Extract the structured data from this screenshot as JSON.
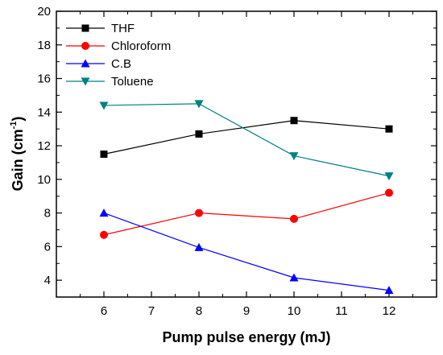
{
  "chart_data": {
    "type": "line",
    "title": "",
    "xlabel": "Pump pulse energy (mJ)",
    "ylabel_main": "Gain (cm",
    "ylabel_sup": "-1",
    "ylabel_close": ")",
    "xlim": [
      5,
      13
    ],
    "ylim": [
      3,
      20
    ],
    "x_major_ticks": [
      6,
      7,
      8,
      9,
      10,
      11,
      12
    ],
    "x_tick_labels": [
      "6",
      "7",
      "8",
      "9",
      "10",
      "11",
      "12"
    ],
    "y_major_ticks": [
      4,
      6,
      8,
      10,
      12,
      14,
      16,
      18,
      20
    ],
    "y_tick_labels": [
      "4",
      "6",
      "8",
      "10",
      "12",
      "14",
      "16",
      "18",
      "20"
    ],
    "grid": false,
    "legend_position": "top-left",
    "series": [
      {
        "name": "THF",
        "x": [
          6,
          8,
          10,
          12
        ],
        "y": [
          11.5,
          12.7,
          13.5,
          13.0
        ],
        "color": "#000000",
        "marker": "square"
      },
      {
        "name": "Chloroform",
        "x": [
          6,
          8,
          10,
          12
        ],
        "y": [
          6.7,
          8.0,
          7.65,
          9.2
        ],
        "color": "#ff0000",
        "marker": "circle"
      },
      {
        "name": "C.B",
        "x": [
          6,
          8,
          10,
          12
        ],
        "y": [
          8.0,
          5.95,
          4.15,
          3.4
        ],
        "color": "#0000ff",
        "marker": "triangle-up"
      },
      {
        "name": "Toluene",
        "x": [
          6,
          8,
          10,
          12
        ],
        "y": [
          14.4,
          14.5,
          11.4,
          10.2
        ],
        "color": "#008080",
        "marker": "triangle-down"
      }
    ]
  }
}
